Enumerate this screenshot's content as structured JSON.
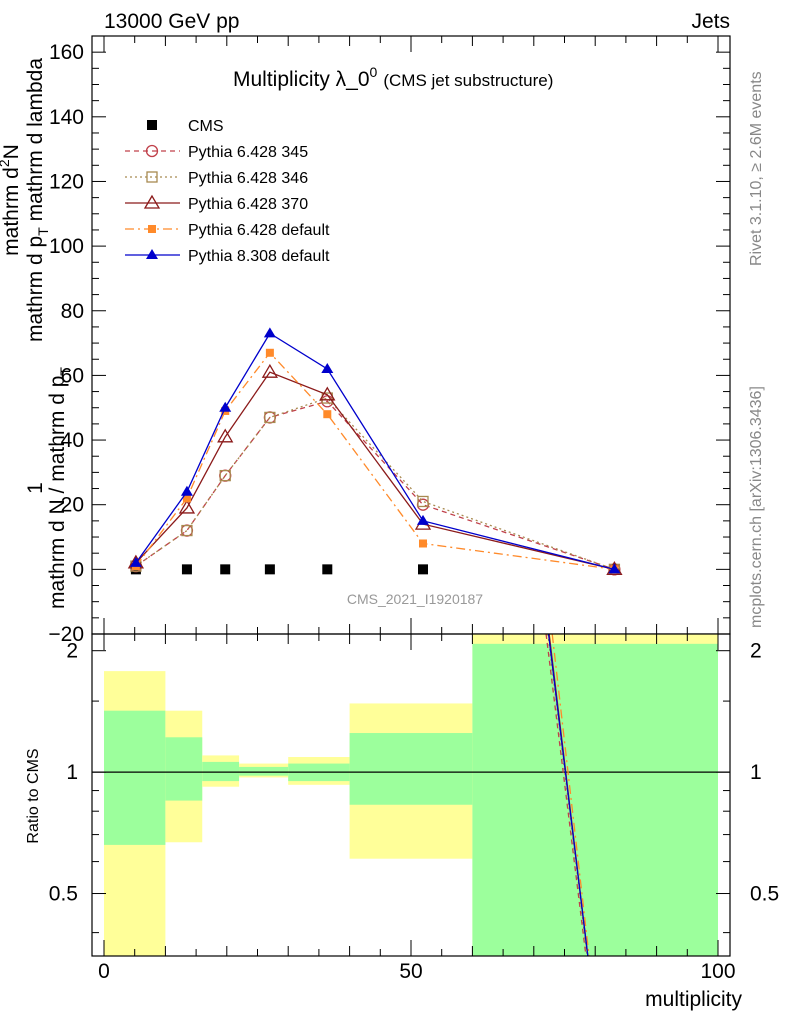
{
  "header": {
    "left": "13000 GeV pp",
    "right": "Jets"
  },
  "side_text": {
    "rivet": "Rivet 3.1.10, ≥ 2.6M events",
    "mcplots": "mcplots.cern.ch [arXiv:1306.3436]"
  },
  "watermark": "CMS_2021_I1920187",
  "colors": {
    "cms": "#000000",
    "p345": "#c0404a",
    "p346": "#a88a50",
    "p370": "#8b1a1a",
    "p6def": "#ff8a2a",
    "p8def": "#0000cc",
    "band_inner": "#9cff9c",
    "band_outer": "#ffff99"
  },
  "chart_data": [
    {
      "type": "line",
      "title": "Multiplicity λ_0⁰ (CMS jet substructure)",
      "title_main": "Multiplicity λ_0",
      "title_sup": "0",
      "title_sub": "(CMS jet substructure)",
      "ylabel_numerator": "mathrm d²N",
      "ylabel_numerator_parts": [
        "mathrm d",
        "2",
        "N"
      ],
      "ylabel_denominator": "mathrm d p_T mathrm d lambda",
      "ylabel_denominator_parts": [
        "mathrm d p",
        "T",
        " mathrm d lambda"
      ],
      "ylabel_prefactor_numerator": "1",
      "ylabel_prefactor_denominator": "mathrm d N / mathrm d p_T",
      "ylabel_prefactor_denominator_parts": [
        "mathrm d N / mathrm d p",
        "T"
      ],
      "xlim": [
        0,
        100
      ],
      "ylim": [
        -20,
        165
      ],
      "y_ticks": [
        -20,
        0,
        20,
        40,
        60,
        80,
        100,
        120,
        140,
        160
      ],
      "legend_position": "top-left",
      "series": [
        {
          "name": "CMS",
          "marker": "filled-square",
          "line": "none",
          "x": [
            5,
            13,
            19,
            26,
            35,
            50
          ],
          "y": [
            0,
            0,
            0,
            0,
            0,
            0
          ]
        },
        {
          "name": "Pythia 6.428 345",
          "marker": "open-circle",
          "line": "dashed",
          "x": [
            5,
            13,
            19,
            26,
            35,
            50,
            80
          ],
          "y": [
            1,
            12,
            29,
            47,
            52,
            20,
            0
          ]
        },
        {
          "name": "Pythia 6.428 346",
          "marker": "open-square",
          "line": "dotted",
          "x": [
            5,
            13,
            19,
            26,
            35,
            50,
            80
          ],
          "y": [
            1,
            12,
            29,
            47,
            53,
            21,
            0
          ]
        },
        {
          "name": "Pythia 6.428 370",
          "marker": "open-triangle",
          "line": "solid",
          "x": [
            5,
            13,
            19,
            26,
            35,
            50,
            80
          ],
          "y": [
            2,
            19,
            41,
            61,
            54,
            14,
            0
          ]
        },
        {
          "name": "Pythia 6.428 default",
          "marker": "filled-small-square",
          "line": "dash-dot",
          "x": [
            5,
            13,
            19,
            26,
            35,
            50,
            80
          ],
          "y": [
            1,
            22,
            49,
            67,
            48,
            8,
            0
          ]
        },
        {
          "name": "Pythia 8.308 default",
          "marker": "filled-triangle",
          "line": "solid",
          "x": [
            5,
            13,
            19,
            26,
            35,
            50,
            80
          ],
          "y": [
            2,
            24,
            50,
            73,
            62,
            15,
            0
          ]
        }
      ]
    },
    {
      "type": "area",
      "ylabel": "Ratio to CMS",
      "xlabel": "multiplicity",
      "xlim": [
        0,
        100
      ],
      "x_ticks": [
        0,
        50,
        100
      ],
      "ylim": [
        0.35,
        2.2
      ],
      "y_scale": "log",
      "y_ticks": [
        0.5,
        1,
        2
      ],
      "reference_line": 1,
      "bins": [
        {
          "x0": 0,
          "x1": 10,
          "outer": [
            0.35,
            1.78
          ],
          "inner": [
            0.66,
            1.42
          ]
        },
        {
          "x0": 10,
          "x1": 16,
          "outer": [
            0.67,
            1.42
          ],
          "inner": [
            0.85,
            1.22
          ]
        },
        {
          "x0": 16,
          "x1": 22,
          "outer": [
            0.92,
            1.1
          ],
          "inner": [
            0.95,
            1.06
          ]
        },
        {
          "x0": 22,
          "x1": 30,
          "outer": [
            0.97,
            1.05
          ],
          "inner": [
            0.98,
            1.03
          ]
        },
        {
          "x0": 30,
          "x1": 40,
          "outer": [
            0.93,
            1.09
          ],
          "inner": [
            0.95,
            1.05
          ]
        },
        {
          "x0": 40,
          "x1": 60,
          "outer": [
            0.61,
            1.48
          ],
          "inner": [
            0.83,
            1.25
          ]
        },
        {
          "x0": 60,
          "x1": 100,
          "outer": [
            0.35,
            2.2
          ],
          "inner": [
            0.35,
            2.08
          ]
        }
      ],
      "ratio_lines": [
        {
          "name": "Pythia 6.428 345",
          "x": [
            72,
            78.5
          ],
          "y": [
            2.2,
            0.35
          ]
        },
        {
          "name": "Pythia 6.428 346",
          "x": [
            72.3,
            78.7
          ],
          "y": [
            2.2,
            0.35
          ]
        },
        {
          "name": "Pythia 6.428 370",
          "x": [
            72.5,
            78.8
          ],
          "y": [
            2.2,
            0.35
          ]
        },
        {
          "name": "Pythia 6.428 default",
          "x": [
            73,
            79
          ],
          "y": [
            2.2,
            0.35
          ]
        },
        {
          "name": "Pythia 8.308 default",
          "x": [
            72.4,
            78.8
          ],
          "y": [
            2.2,
            0.35
          ]
        }
      ]
    }
  ]
}
